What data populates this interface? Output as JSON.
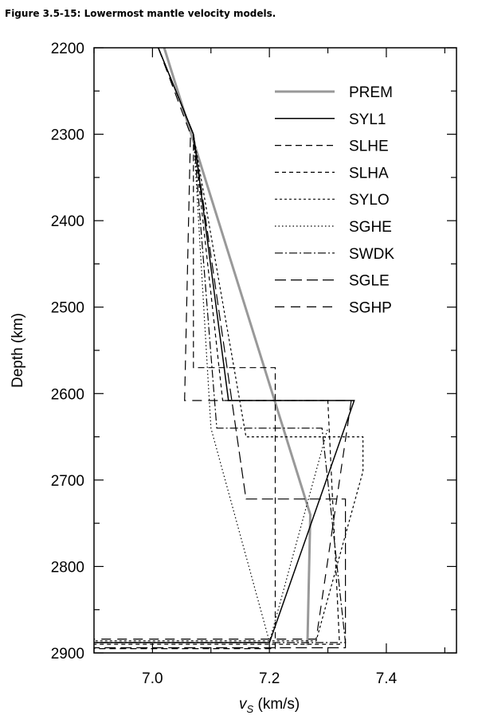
{
  "figure_title": "Figure 3.5-15: Lowermost mantle velocity models.",
  "chart_data": {
    "type": "line",
    "xlabel_var": "v",
    "xlabel_sub": "S",
    "xlabel_unit": " (km/s)",
    "ylabel": "Depth (km)",
    "xlim": [
      6.9,
      7.52
    ],
    "ylim": [
      2200,
      2900
    ],
    "y_inverted": true,
    "x_ticks": [
      7.0,
      7.2,
      7.4
    ],
    "x_tick_labels": [
      "7.0",
      "7.2",
      "7.4"
    ],
    "y_ticks": [
      2200,
      2300,
      2400,
      2500,
      2600,
      2700,
      2800,
      2900
    ],
    "y_tick_labels": [
      "2200",
      "2300",
      "2400",
      "2500",
      "2600",
      "2700",
      "2800",
      "2900"
    ],
    "legend_position": "top-right",
    "series": [
      {
        "name": "PREM",
        "color": "#999999",
        "width": 3,
        "dash": "",
        "points": [
          [
            7.02,
            2200
          ],
          [
            7.27,
            2740
          ],
          [
            7.265,
            2891
          ]
        ]
      },
      {
        "name": "SYL1",
        "color": "#000000",
        "width": 1.5,
        "dash": "",
        "points": [
          [
            7.01,
            2200
          ],
          [
            7.07,
            2300
          ],
          [
            7.13,
            2608
          ],
          [
            7.345,
            2608
          ],
          [
            7.2,
            2888
          ],
          [
            6.9,
            2888
          ]
        ]
      },
      {
        "name": "SLHE",
        "color": "#000000",
        "width": 1.2,
        "dash": "8,5",
        "points": [
          [
            7.01,
            2200
          ],
          [
            7.07,
            2300
          ],
          [
            7.07,
            2570
          ],
          [
            7.21,
            2570
          ],
          [
            7.21,
            2895
          ],
          [
            6.9,
            2895
          ]
        ]
      },
      {
        "name": "SLHA",
        "color": "#000000",
        "width": 1.2,
        "dash": "5,4",
        "points": [
          [
            7.01,
            2200
          ],
          [
            7.07,
            2300
          ],
          [
            7.12,
            2608
          ],
          [
            7.3,
            2608
          ],
          [
            7.32,
            2890
          ],
          [
            6.9,
            2890
          ]
        ]
      },
      {
        "name": "SYLO",
        "color": "#000000",
        "width": 1.2,
        "dash": "3,3",
        "points": [
          [
            7.01,
            2200
          ],
          [
            7.07,
            2300
          ],
          [
            7.16,
            2650
          ],
          [
            7.36,
            2650
          ],
          [
            7.36,
            2690
          ],
          [
            7.28,
            2886
          ],
          [
            6.9,
            2886
          ]
        ]
      },
      {
        "name": "SGHE",
        "color": "#000000",
        "width": 1.2,
        "dash": "1.5,3",
        "points": [
          [
            7.01,
            2200
          ],
          [
            7.07,
            2300
          ],
          [
            7.1,
            2640
          ],
          [
            7.2,
            2887
          ],
          [
            7.3,
            2640
          ]
        ]
      },
      {
        "name": "SWDK",
        "color": "#000000",
        "width": 1.2,
        "dash": "10,3,2,3",
        "points": [
          [
            7.01,
            2200
          ],
          [
            7.07,
            2300
          ],
          [
            7.11,
            2640
          ],
          [
            7.29,
            2640
          ],
          [
            7.33,
            2888
          ],
          [
            6.9,
            2888
          ]
        ]
      },
      {
        "name": "SGLE",
        "color": "#000000",
        "width": 1.2,
        "dash": "14,6",
        "points": [
          [
            7.01,
            2200
          ],
          [
            7.07,
            2300
          ],
          [
            7.16,
            2722
          ],
          [
            7.33,
            2722
          ],
          [
            7.33,
            2894
          ],
          [
            6.9,
            2894
          ]
        ]
      },
      {
        "name": "SGHP",
        "color": "#000000",
        "width": 1.2,
        "dash": "12,8",
        "points": [
          [
            7.01,
            2200
          ],
          [
            7.065,
            2300
          ],
          [
            7.055,
            2608
          ],
          [
            7.34,
            2608
          ],
          [
            7.28,
            2884
          ],
          [
            6.9,
            2884
          ]
        ]
      }
    ]
  }
}
